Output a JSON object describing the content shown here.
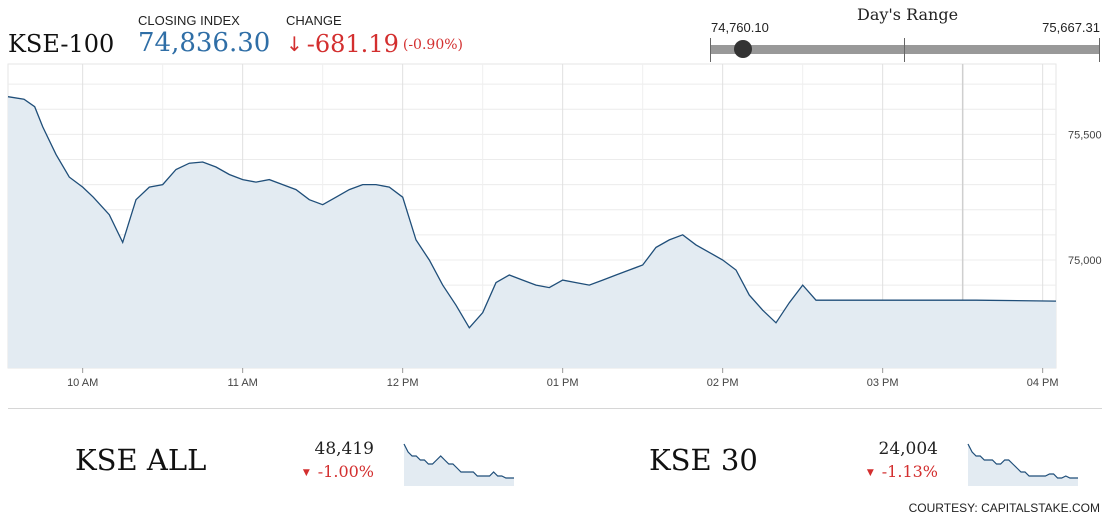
{
  "header": {
    "index_name": "KSE-100",
    "closing_label": "CLOSING INDEX",
    "closing_value": "74,836.30",
    "change_label": "CHANGE",
    "change_arrow": "↓",
    "change_value": "-681.19",
    "change_pct": "(-0.90%)"
  },
  "day_range": {
    "title": "Day's Range",
    "low_label": "74,760.10",
    "high_label": "75,667.31",
    "low": 74760.1,
    "high": 75667.31,
    "current": 74836.3
  },
  "colors": {
    "line": "#1f4e79",
    "area": "#e3ebf2",
    "negative": "#d32f2f",
    "value_blue": "#2f6ea6"
  },
  "chart_data": [
    {
      "type": "area",
      "x_tick_labels": [
        "10 AM",
        "11 AM",
        "12 PM",
        "01 PM",
        "02 PM",
        "03 PM",
        "04 PM"
      ],
      "y_tick_labels": [
        "75,500",
        "75,000"
      ],
      "x_range": [
        "09:32",
        "16:05"
      ],
      "ylim": [
        74570,
        75780
      ],
      "grid": true,
      "x": [
        "09:32",
        "09:38",
        "09:42",
        "09:45",
        "09:50",
        "09:55",
        "10:00",
        "10:04",
        "10:10",
        "10:15",
        "10:20",
        "10:25",
        "10:30",
        "10:35",
        "10:40",
        "10:45",
        "10:50",
        "10:55",
        "11:00",
        "11:05",
        "11:10",
        "11:15",
        "11:20",
        "11:25",
        "11:30",
        "11:35",
        "11:40",
        "11:45",
        "11:50",
        "11:55",
        "12:00",
        "12:05",
        "12:10",
        "12:15",
        "12:20",
        "12:25",
        "12:30",
        "12:35",
        "12:40",
        "12:45",
        "12:50",
        "12:55",
        "13:00",
        "13:05",
        "13:10",
        "13:15",
        "13:20",
        "13:25",
        "13:30",
        "13:35",
        "13:40",
        "13:45",
        "13:50",
        "13:55",
        "14:00",
        "14:05",
        "14:10",
        "14:15",
        "14:20",
        "14:25",
        "14:30",
        "14:35",
        "14:40",
        "14:45",
        "14:50",
        "14:55",
        "15:00",
        "15:05",
        "15:10",
        "15:15",
        "15:20",
        "15:25",
        "15:28",
        "15:30",
        "15:35",
        "16:05"
      ],
      "values": [
        75650,
        75640,
        75610,
        75530,
        75420,
        75330,
        75290,
        75250,
        75180,
        75070,
        75240,
        75290,
        75300,
        75360,
        75385,
        75390,
        75370,
        75340,
        75320,
        75310,
        75320,
        75300,
        75280,
        75240,
        75220,
        75250,
        75280,
        75300,
        75300,
        75290,
        75250,
        75080,
        75000,
        74900,
        74820,
        74730,
        74790,
        74910,
        74940,
        74920,
        74900,
        74890,
        74920,
        74910,
        74900,
        74920,
        74940,
        74960,
        74980,
        75050,
        75080,
        75100,
        75060,
        75030,
        75000,
        74960,
        74860,
        74800,
        74750,
        74830,
        74900,
        74840,
        74840,
        74840,
        74840,
        74840,
        74840,
        74840,
        74840,
        74840,
        74840,
        74840,
        74840,
        74840,
        74840,
        74836.3
      ]
    },
    {
      "type": "area",
      "name": "KSE ALL",
      "value_label": "48,419",
      "change_label": "-1.00%",
      "values": [
        10,
        8,
        7,
        7,
        6,
        6,
        5,
        5,
        6,
        7,
        6,
        5,
        5,
        4,
        3,
        3,
        3,
        3,
        2,
        2,
        2,
        2,
        3,
        2,
        2,
        1.5,
        1.5,
        1.5
      ]
    },
    {
      "type": "area",
      "name": "KSE 30",
      "value_label": "24,004",
      "change_label": "-1.13%",
      "values": [
        10,
        8,
        7,
        7,
        6,
        6,
        6,
        5,
        5,
        6,
        6,
        5,
        4,
        3,
        3,
        2,
        2,
        2,
        2,
        2,
        2.5,
        2.5,
        1.5,
        1.5,
        2,
        1.5,
        1.5,
        1.5
      ]
    }
  ],
  "footer": {
    "credit": "COURTESY: CAPITALSTAKE.COM"
  }
}
